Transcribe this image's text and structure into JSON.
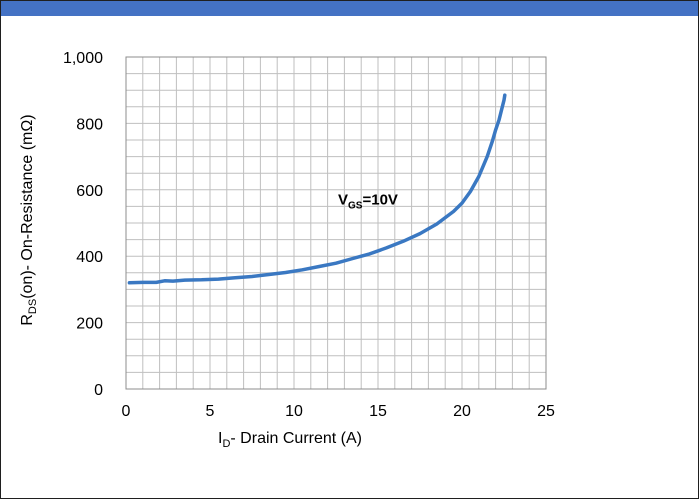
{
  "colors": {
    "header_bar": "#4472c4",
    "series": "#3a78c2",
    "grid": "#bfbfbf"
  },
  "chart_data": {
    "type": "line",
    "xlabel_main": "I",
    "xlabel_sub": "D",
    "xlabel_rest": "- Drain Current (A)",
    "ylabel_main": "R",
    "ylabel_sub": "DS",
    "ylabel_rest": "(on)- On-Resistance (mΩ)",
    "xlim": [
      0,
      25
    ],
    "ylim": [
      0,
      1000
    ],
    "xticks": [
      0,
      5,
      10,
      15,
      20,
      25
    ],
    "xtick_labels": [
      "0",
      "5",
      "10",
      "15",
      "20",
      "25"
    ],
    "yticks": [
      0,
      200,
      400,
      600,
      800,
      1000
    ],
    "ytick_labels": [
      "0",
      "200",
      "400",
      "600",
      "800",
      "1,000"
    ],
    "grid": true,
    "annotation": {
      "main": "V",
      "sub": "GS",
      "rest": "=10V",
      "x": 15.0,
      "y": 555
    },
    "series": [
      {
        "x": [
          0.2,
          1.0,
          1.8,
          2.3,
          2.8,
          3.5,
          4.5,
          5.5,
          6.5,
          7.5,
          8.5,
          9.5,
          10.5,
          11.5,
          12.5,
          13.5,
          14.5,
          15.5,
          16.5,
          17.5,
          18.5,
          19.5,
          20.0,
          20.5,
          21.0,
          21.5,
          21.8,
          22.0,
          22.2,
          22.35,
          22.5,
          22.55
        ],
        "y": [
          320,
          321,
          321,
          326,
          325,
          328,
          329,
          331,
          335,
          339,
          345,
          351,
          359,
          369,
          379,
          393,
          407,
          425,
          445,
          468,
          497,
          535,
          560,
          595,
          640,
          700,
          745,
          780,
          810,
          840,
          870,
          885
        ]
      }
    ]
  }
}
